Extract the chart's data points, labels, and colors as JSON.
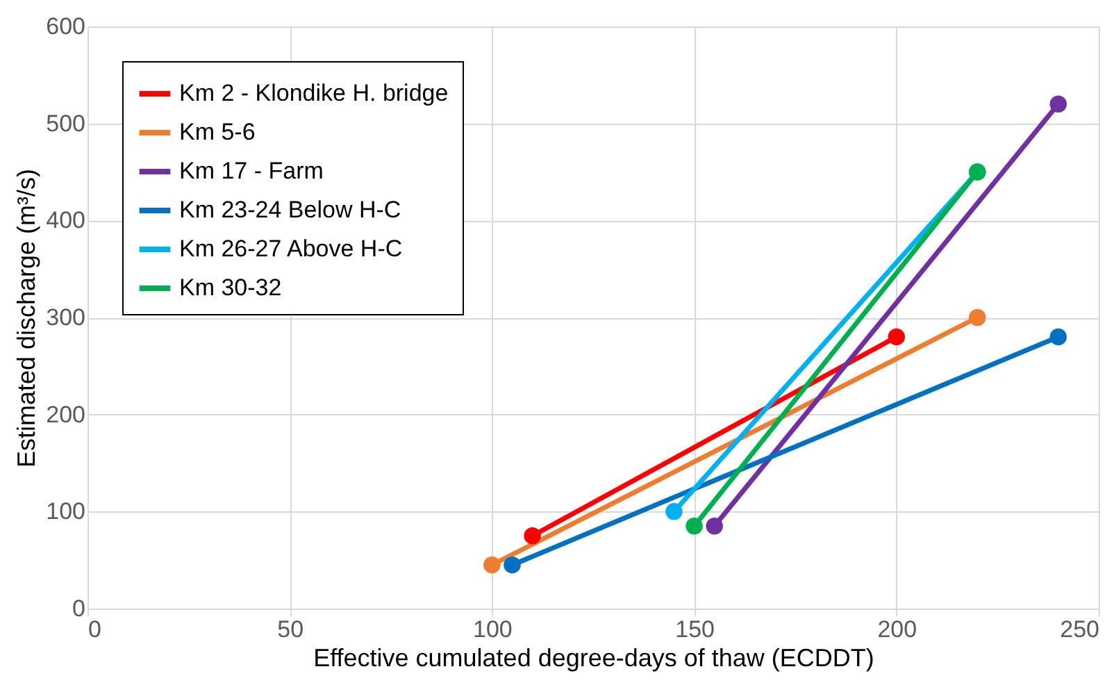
{
  "chart_data": {
    "type": "line",
    "xlabel": "Effective cumulated degree-days of thaw (ECDDT)",
    "ylabel": "Estimated discharge (m³/s)",
    "xlim": [
      0,
      250
    ],
    "xticks": [
      0,
      50,
      100,
      150,
      200,
      250
    ],
    "ylim": [
      0,
      600
    ],
    "yticks": [
      0,
      100,
      200,
      300,
      400,
      500,
      600
    ],
    "grid": true,
    "legend": "top left",
    "marker": "circle",
    "line_style": "solid",
    "series": [
      {
        "name": "Km 2 - Klondike H. bridge",
        "color": "#ff0000",
        "x": [
          110,
          200
        ],
        "values": [
          75,
          280
        ]
      },
      {
        "name": "Km 5-6",
        "color": "#ed7d31",
        "x": [
          100,
          220
        ],
        "values": [
          45,
          300
        ]
      },
      {
        "name": "Km 17 - Farm",
        "color": "#7030a0",
        "x": [
          155,
          240
        ],
        "values": [
          85,
          520
        ]
      },
      {
        "name": "Km 23-24 Below H-C",
        "color": "#0070c0",
        "x": [
          105,
          240
        ],
        "values": [
          45,
          280
        ]
      },
      {
        "name": "Km 26-27 Above H-C",
        "color": "#00b0f0",
        "x": [
          145,
          220
        ],
        "values": [
          100,
          450
        ]
      },
      {
        "name": "Km 30-32",
        "color": "#00b050",
        "x": [
          150,
          220
        ],
        "values": [
          85,
          450
        ]
      }
    ]
  }
}
